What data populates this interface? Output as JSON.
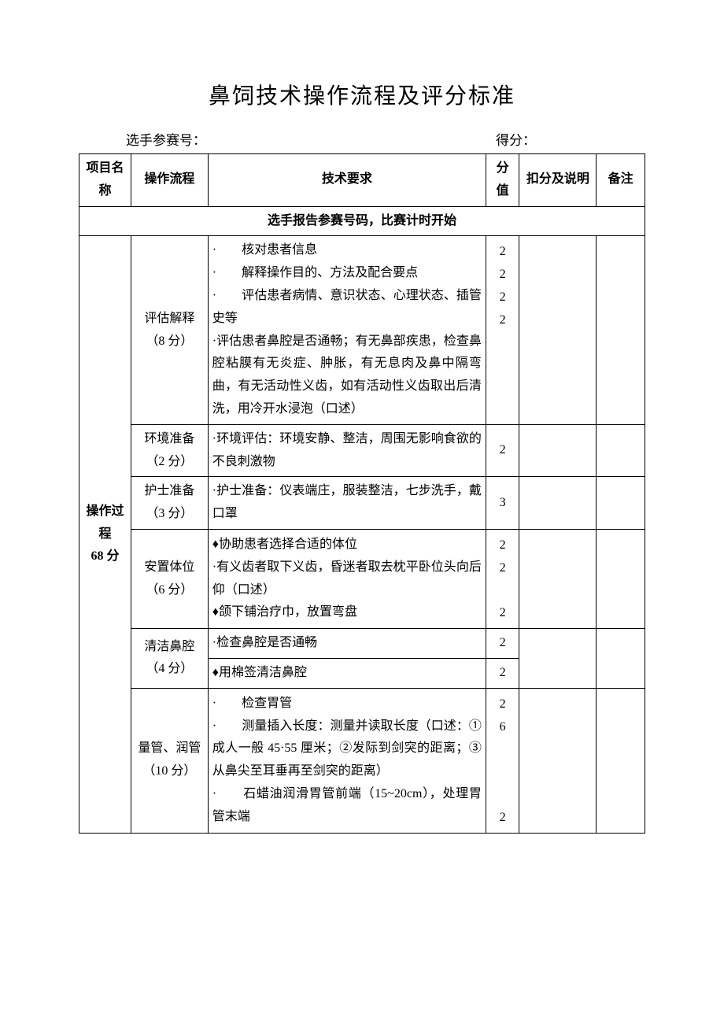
{
  "title": "鼻饲技术操作流程及评分标准",
  "header": {
    "left_label": "选手参赛号：",
    "right_label": "得分："
  },
  "table_headers": {
    "project": "项目名称",
    "flow": "操作流程",
    "tech": "技术要求",
    "score": "分值",
    "deduct": "扣分及说明",
    "remark": "备注"
  },
  "banner": "选手报告参赛号码，比赛计时开始",
  "section": {
    "label_line1": "操作过",
    "label_line2": "程",
    "label_line3": "68 分"
  },
  "rows": [
    {
      "flow": "评估解释（8 分）",
      "tech_lines": [
        "·　　核对患者信息",
        "·　　解释操作目的、方法及配合要点",
        "·　　评估患者病情、意识状态、心理状态、插管史等",
        "·评估患者鼻腔是否通畅；有无鼻部疾患，检查鼻腔粘膜有无炎症、肿胀，有无息肉及鼻中隔弯曲，有无活动性义齿，如有活动性义齿取出后清洗，用冷开水浸泡（口述）"
      ],
      "scores": [
        "2",
        "2",
        "2",
        "",
        "2",
        "",
        "",
        "",
        ""
      ]
    },
    {
      "flow": "环境准备（2 分）",
      "tech_lines": [
        "·环境评估：环境安静、整洁，周围无影响食欲的不良刺激物"
      ],
      "scores": [
        "2"
      ]
    },
    {
      "flow": "护士准备（3 分）",
      "tech_lines": [
        "·护士准备：仪表端庄，服装整洁，七步洗手，戴口罩"
      ],
      "scores": [
        "3"
      ]
    },
    {
      "flow": "安置体位（6 分）",
      "tech_lines": [
        "♦协助患者选择合适的体位",
        "·有义齿者取下义齿，昏迷者取去枕平卧位头向后仰（口述）",
        "♦颌下铺治疗巾，放置弯盘"
      ],
      "scores": [
        "2",
        "2",
        "",
        "2"
      ]
    },
    {
      "flow": "清洁鼻腔（4 分）",
      "tech_lines": [
        "·检查鼻腔是否通畅",
        "♦用棉签清洁鼻腔"
      ],
      "scores_split": [
        "2",
        "2"
      ]
    },
    {
      "flow": "量管、润管（10 分）",
      "tech_lines": [
        "·　　检查胃管",
        "·　　测量插入长度：测量并读取长度（口述：①成人一般 45·55 厘米；②发际到剑突的距离；③从鼻尖至耳垂再至剑突的距离）",
        "·　　石蜡油润滑胃管前端（15~20cm），处理胃管末端"
      ],
      "scores": [
        "2",
        "6",
        "",
        "",
        "",
        "2",
        ""
      ]
    }
  ],
  "colors": {
    "text": "#000000",
    "bg": "#ffffff",
    "border": "#000000"
  },
  "fontsize": {
    "title": 28,
    "body": 16,
    "header": 17
  }
}
